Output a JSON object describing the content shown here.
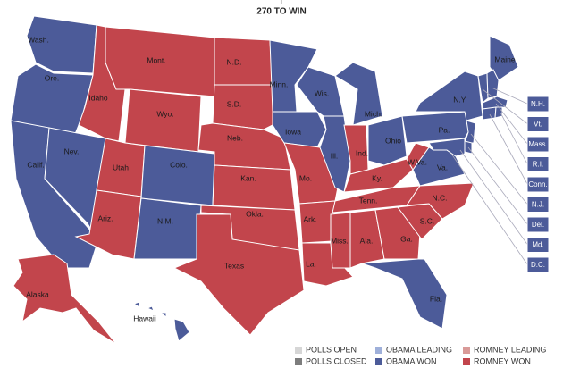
{
  "header": {
    "title": "270 TO WIN"
  },
  "states": [
    {
      "label": "Wash.",
      "color": "#4c5b99"
    },
    {
      "label": "Ore.",
      "color": "#4c5b99"
    },
    {
      "label": "Calif.",
      "color": "#4c5b99"
    },
    {
      "label": "Nev.",
      "color": "#4c5b99"
    },
    {
      "label": "Idaho",
      "color": "#c2454c"
    },
    {
      "label": "Mont.",
      "color": "#c2454c"
    },
    {
      "label": "Wyo.",
      "color": "#c2454c"
    },
    {
      "label": "Utah",
      "color": "#c2454c"
    },
    {
      "label": "Colo.",
      "color": "#4c5b99"
    },
    {
      "label": "Ariz.",
      "color": "#c2454c"
    },
    {
      "label": "N.M.",
      "color": "#4c5b99"
    },
    {
      "label": "N.D.",
      "color": "#c2454c"
    },
    {
      "label": "S.D.",
      "color": "#c2454c"
    },
    {
      "label": "Neb.",
      "color": "#c2454c"
    },
    {
      "label": "Kan.",
      "color": "#c2454c"
    },
    {
      "label": "Okla.",
      "color": "#c2454c"
    },
    {
      "label": "Texas",
      "color": "#c2454c"
    },
    {
      "label": "Minn.",
      "color": "#4c5b99"
    },
    {
      "label": "Iowa",
      "color": "#4c5b99"
    },
    {
      "label": "Mo.",
      "color": "#c2454c"
    },
    {
      "label": "Ark.",
      "color": "#c2454c"
    },
    {
      "label": "La.",
      "color": "#c2454c"
    },
    {
      "label": "Wis.",
      "color": "#4c5b99"
    },
    {
      "label": "Ill.",
      "color": "#4c5b99"
    },
    {
      "label": "Mich.",
      "color": "#4c5b99"
    },
    {
      "label": "Ind.",
      "color": "#c2454c"
    },
    {
      "label": "Ohio",
      "color": "#4c5b99"
    },
    {
      "label": "Ky.",
      "color": "#c2454c"
    },
    {
      "label": "Tenn.",
      "color": "#c2454c"
    },
    {
      "label": "Miss.",
      "color": "#c2454c"
    },
    {
      "label": "Ala.",
      "color": "#c2454c"
    },
    {
      "label": "Ga.",
      "color": "#c2454c"
    },
    {
      "label": "Fla.",
      "color": "#4c5b99"
    },
    {
      "label": "S.C.",
      "color": "#c2454c"
    },
    {
      "label": "N.C.",
      "color": "#c2454c"
    },
    {
      "label": "Va.",
      "color": "#4c5b99"
    },
    {
      "label": "W.Va.",
      "color": "#c2454c"
    },
    {
      "label": "Pa.",
      "color": "#4c5b99"
    },
    {
      "label": "N.Y.",
      "color": "#4c5b99"
    },
    {
      "label": "Maine",
      "color": "#4c5b99"
    },
    {
      "label": "Alaska",
      "color": "#c2454c"
    },
    {
      "label": "Hawaii",
      "color": "#4c5b99"
    }
  ],
  "small_states": [
    {
      "label": "N.H.",
      "color": "#4c5b99"
    },
    {
      "label": "Vt.",
      "color": "#4c5b99"
    },
    {
      "label": "Mass.",
      "color": "#4c5b99"
    },
    {
      "label": "R.I.",
      "color": "#4c5b99"
    },
    {
      "label": "Conn.",
      "color": "#4c5b99"
    },
    {
      "label": "N.J.",
      "color": "#4c5b99"
    },
    {
      "label": "Del.",
      "color": "#4c5b99"
    },
    {
      "label": "Md.",
      "color": "#4c5b99"
    },
    {
      "label": "D.C.",
      "color": "#4c5b99"
    }
  ],
  "legend": [
    {
      "label": "POLLS OPEN",
      "color": "#d6d6d6"
    },
    {
      "label": "POLLS CLOSED",
      "color": "#7d7d7d"
    },
    {
      "label": "OBAMA LEADING",
      "color": "#9fb0da"
    },
    {
      "label": "OBAMA WON",
      "color": "#4c5b99"
    },
    {
      "label": "ROMNEY LEADING",
      "color": "#d99a98"
    },
    {
      "label": "ROMNEY WON",
      "color": "#c2454c"
    }
  ]
}
